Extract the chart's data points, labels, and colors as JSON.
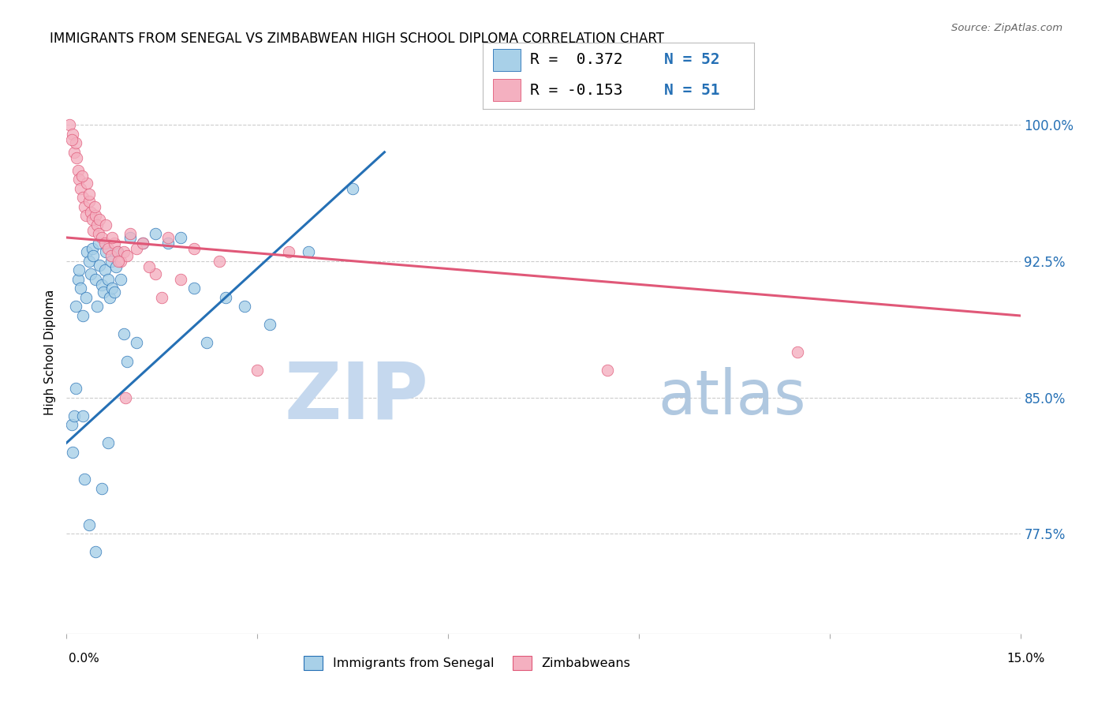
{
  "title": "IMMIGRANTS FROM SENEGAL VS ZIMBABWEAN HIGH SCHOOL DIPLOMA CORRELATION CHART",
  "source": "Source: ZipAtlas.com",
  "ylabel": "High School Diploma",
  "yticks": [
    77.5,
    85.0,
    92.5,
    100.0
  ],
  "ytick_labels": [
    "77.5%",
    "85.0%",
    "92.5%",
    "100.0%"
  ],
  "xlim": [
    0.0,
    15.0
  ],
  "ylim": [
    72.0,
    103.0
  ],
  "legend_label1": "Immigrants from Senegal",
  "legend_label2": "Zimbabweans",
  "R1": 0.372,
  "N1": 52,
  "R2": -0.153,
  "N2": 51,
  "color_blue": "#a8d0e8",
  "color_pink": "#f4b0c0",
  "trendline_blue": "#2570b5",
  "trendline_pink": "#e05878",
  "watermark_zip": "ZIP",
  "watermark_atlas": "atlas",
  "watermark_color_zip": "#c5d8ee",
  "watermark_color_atlas": "#b0c8e0",
  "blue_trendline_x0": 0.0,
  "blue_trendline_y0": 82.5,
  "blue_trendline_x1": 5.0,
  "blue_trendline_y1": 98.5,
  "pink_trendline_x0": 0.0,
  "pink_trendline_y0": 93.8,
  "pink_trendline_x1": 15.0,
  "pink_trendline_y1": 89.5,
  "senegal_x": [
    0.08,
    0.1,
    0.12,
    0.15,
    0.18,
    0.2,
    0.22,
    0.25,
    0.28,
    0.3,
    0.32,
    0.35,
    0.38,
    0.4,
    0.42,
    0.45,
    0.48,
    0.5,
    0.52,
    0.55,
    0.58,
    0.6,
    0.62,
    0.65,
    0.68,
    0.7,
    0.72,
    0.75,
    0.78,
    0.8,
    0.85,
    0.9,
    0.95,
    1.0,
    1.1,
    1.2,
    1.4,
    1.6,
    1.8,
    2.0,
    2.2,
    2.5,
    2.8,
    3.2,
    3.8,
    4.5,
    0.15,
    0.25,
    0.35,
    0.45,
    0.55,
    0.65
  ],
  "senegal_y": [
    83.5,
    82.0,
    84.0,
    90.0,
    91.5,
    92.0,
    91.0,
    89.5,
    80.5,
    90.5,
    93.0,
    92.5,
    91.8,
    93.2,
    92.8,
    91.5,
    90.0,
    93.5,
    92.3,
    91.2,
    90.8,
    92.0,
    93.0,
    91.5,
    90.5,
    92.5,
    91.0,
    90.8,
    92.2,
    93.0,
    91.5,
    88.5,
    87.0,
    93.8,
    88.0,
    93.5,
    94.0,
    93.5,
    93.8,
    91.0,
    88.0,
    90.5,
    90.0,
    89.0,
    93.0,
    96.5,
    85.5,
    84.0,
    78.0,
    76.5,
    80.0,
    82.5
  ],
  "zimbabwe_x": [
    0.05,
    0.1,
    0.12,
    0.15,
    0.18,
    0.2,
    0.22,
    0.25,
    0.28,
    0.3,
    0.32,
    0.35,
    0.38,
    0.4,
    0.42,
    0.45,
    0.48,
    0.5,
    0.55,
    0.6,
    0.65,
    0.7,
    0.75,
    0.8,
    0.85,
    0.9,
    0.95,
    1.0,
    1.1,
    1.2,
    1.4,
    1.6,
    1.8,
    2.0,
    2.4,
    3.0,
    0.08,
    0.16,
    0.24,
    0.36,
    0.44,
    0.52,
    0.62,
    0.72,
    0.82,
    0.92,
    1.3,
    1.5,
    3.5,
    8.5,
    11.5
  ],
  "zimbabwe_y": [
    100.0,
    99.5,
    98.5,
    99.0,
    97.5,
    97.0,
    96.5,
    96.0,
    95.5,
    95.0,
    96.8,
    95.8,
    95.2,
    94.8,
    94.2,
    95.0,
    94.5,
    94.0,
    93.8,
    93.5,
    93.2,
    92.8,
    93.5,
    93.0,
    92.5,
    93.0,
    92.8,
    94.0,
    93.2,
    93.5,
    91.8,
    93.8,
    91.5,
    93.2,
    92.5,
    86.5,
    99.2,
    98.2,
    97.2,
    96.2,
    95.5,
    94.8,
    94.5,
    93.8,
    92.5,
    85.0,
    92.2,
    90.5,
    93.0,
    86.5,
    87.5
  ]
}
